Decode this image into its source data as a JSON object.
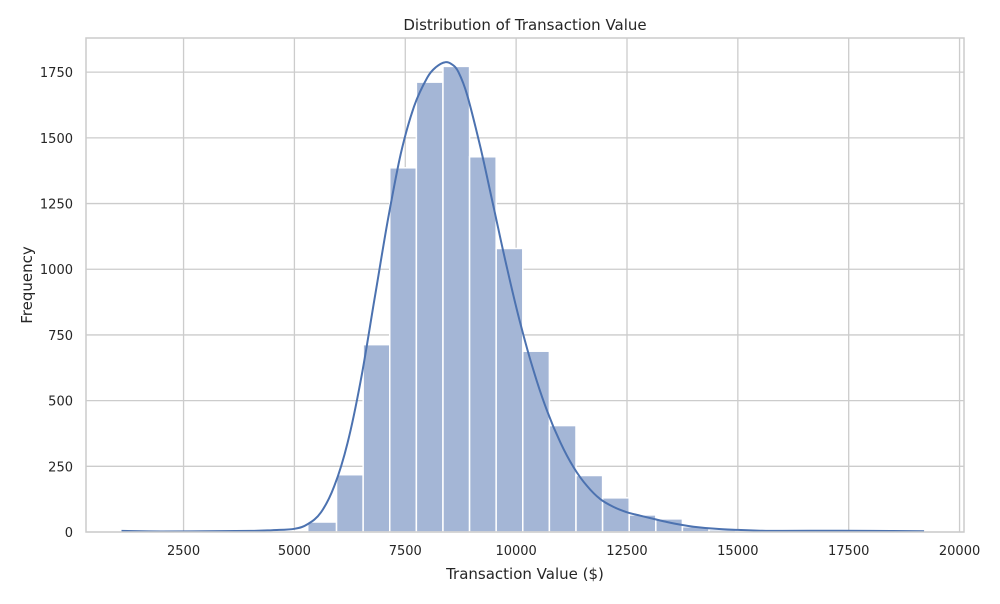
{
  "chart_data": {
    "type": "bar",
    "subtype": "histogram_with_kde",
    "title": "Distribution of Transaction Value",
    "xlabel": "Transaction Value ($)",
    "ylabel": "Frequency",
    "xlim": [
      300,
      20100
    ],
    "ylim": [
      0,
      1880
    ],
    "grid": true,
    "legend": "none",
    "x_ticks": [
      2500,
      5000,
      7500,
      10000,
      12500,
      15000,
      17500,
      20000
    ],
    "y_ticks": [
      0,
      250,
      500,
      750,
      1000,
      1250,
      1500,
      1750
    ],
    "bins": [
      {
        "x0": 1100,
        "x1": 1700,
        "value": 2
      },
      {
        "x0": 1700,
        "x1": 2300,
        "value": 0
      },
      {
        "x0": 2300,
        "x1": 2900,
        "value": 1
      },
      {
        "x0": 2900,
        "x1": 3500,
        "value": 1
      },
      {
        "x0": 3500,
        "x1": 4100,
        "value": 1
      },
      {
        "x0": 4100,
        "x1": 4700,
        "value": 2
      },
      {
        "x0": 4700,
        "x1": 5300,
        "value": 3
      },
      {
        "x0": 5300,
        "x1": 5950,
        "value": 38
      },
      {
        "x0": 5950,
        "x1": 6550,
        "value": 218
      },
      {
        "x0": 6550,
        "x1": 7150,
        "value": 713
      },
      {
        "x0": 7150,
        "x1": 7750,
        "value": 1386
      },
      {
        "x0": 7750,
        "x1": 8350,
        "value": 1712
      },
      {
        "x0": 8350,
        "x1": 8950,
        "value": 1772
      },
      {
        "x0": 8950,
        "x1": 9550,
        "value": 1428
      },
      {
        "x0": 9550,
        "x1": 10150,
        "value": 1079
      },
      {
        "x0": 10150,
        "x1": 10750,
        "value": 688
      },
      {
        "x0": 10750,
        "x1": 11350,
        "value": 405
      },
      {
        "x0": 11350,
        "x1": 11950,
        "value": 215
      },
      {
        "x0": 11950,
        "x1": 12550,
        "value": 130
      },
      {
        "x0": 12550,
        "x1": 13150,
        "value": 65
      },
      {
        "x0": 13150,
        "x1": 13750,
        "value": 50
      },
      {
        "x0": 13750,
        "x1": 14350,
        "value": 20
      },
      {
        "x0": 14350,
        "x1": 14950,
        "value": 8
      },
      {
        "x0": 14950,
        "x1": 15550,
        "value": 5
      },
      {
        "x0": 15550,
        "x1": 16150,
        "value": 3
      },
      {
        "x0": 16150,
        "x1": 16750,
        "value": 2
      },
      {
        "x0": 16750,
        "x1": 17350,
        "value": 2
      },
      {
        "x0": 17350,
        "x1": 17950,
        "value": 1
      },
      {
        "x0": 17950,
        "x1": 18550,
        "value": 1
      },
      {
        "x0": 18550,
        "x1": 19200,
        "value": 1
      }
    ],
    "kde": {
      "x": [
        1100,
        2000,
        3000,
        4000,
        4500,
        5000,
        5300,
        5600,
        5900,
        6200,
        6500,
        6800,
        7100,
        7400,
        7700,
        8000,
        8200,
        8400,
        8550,
        8700,
        8900,
        9200,
        9500,
        9800,
        10100,
        10400,
        10700,
        11000,
        11300,
        11600,
        11900,
        12200,
        12500,
        12800,
        13100,
        13400,
        13700,
        14000,
        14500,
        15000,
        15500,
        16000,
        17000,
        18000,
        19200
      ],
      "y": [
        4,
        2,
        3,
        4,
        7,
        12,
        30,
        75,
        175,
        340,
        580,
        880,
        1180,
        1440,
        1620,
        1730,
        1770,
        1788,
        1780,
        1750,
        1660,
        1460,
        1230,
        1000,
        790,
        610,
        460,
        340,
        245,
        175,
        125,
        95,
        75,
        62,
        50,
        38,
        28,
        20,
        12,
        8,
        5,
        4,
        5,
        4,
        3
      ]
    },
    "colors": {
      "bar_fill": "#a4b6d6",
      "bar_edge": "#ffffff",
      "line": "#4c72b0",
      "grid": "#cccccc",
      "frame": "#cccccc"
    }
  }
}
